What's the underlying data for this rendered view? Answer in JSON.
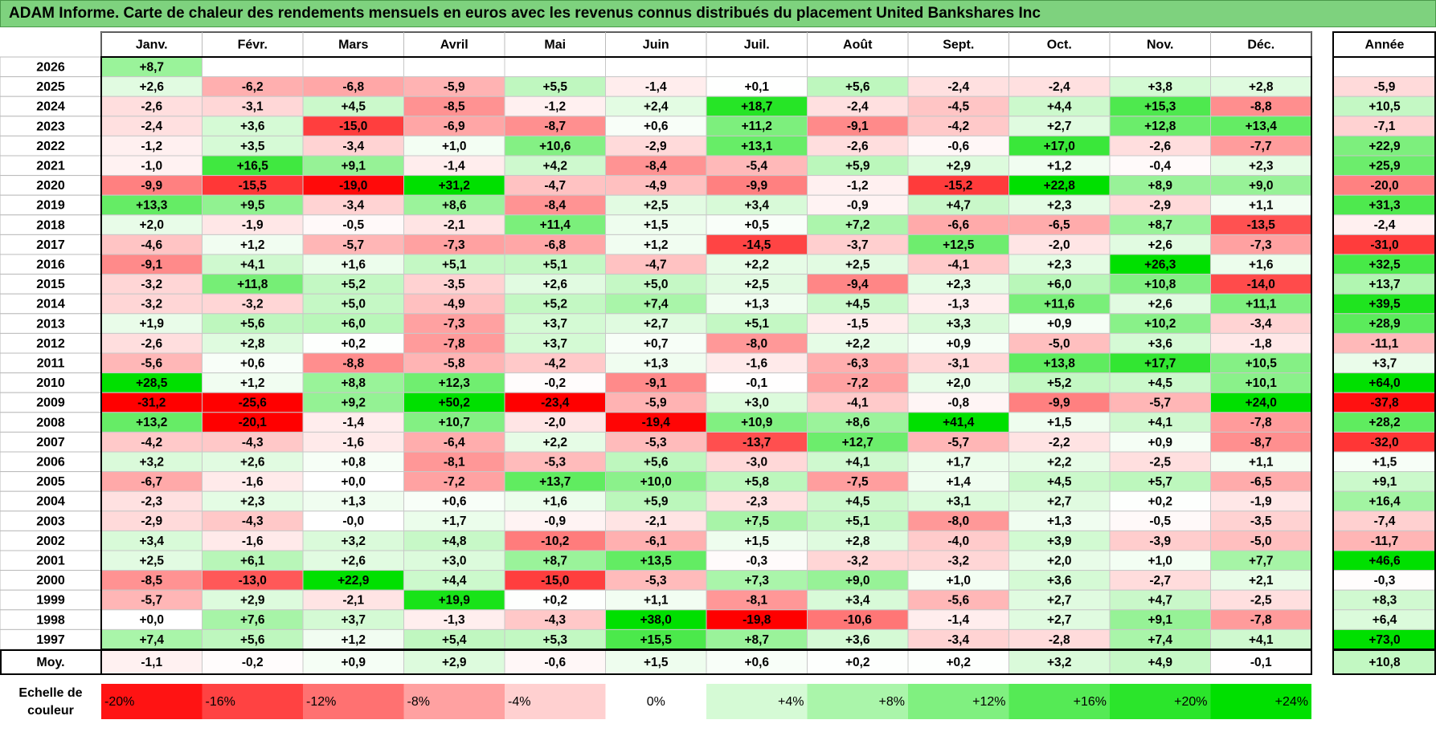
{
  "title": "ADAM Informe. Carte de chaleur des rendements mensuels en euros avec les revenus connus distribués du placement United Bankshares Inc",
  "colors": {
    "neg_max": "#ff0000",
    "pos_max": "#00e000",
    "neutral": "#ffffff",
    "title_bg": "#7ed27e"
  },
  "chart_data": {
    "type": "heatmap",
    "title": "ADAM Informe. Carte de chaleur des rendements mensuels en euros avec les revenus connus distribués du placement United Bankshares Inc",
    "columns": [
      "Janv.",
      "Févr.",
      "Mars",
      "Avril",
      "Mai",
      "Juin",
      "Juil.",
      "Août",
      "Sept.",
      "Oct.",
      "Nov.",
      "Déc."
    ],
    "year_header": "Année",
    "rows": [
      {
        "year": "2026",
        "values": [
          "+8,7",
          null,
          null,
          null,
          null,
          null,
          null,
          null,
          null,
          null,
          null,
          null
        ],
        "annual": null
      },
      {
        "year": "2025",
        "values": [
          "+2,6",
          "-6,2",
          "-6,8",
          "-5,9",
          "+5,5",
          "-1,4",
          "+0,1",
          "+5,6",
          "-2,4",
          "-2,4",
          "+3,8",
          "+2,8"
        ],
        "annual": "-5,9"
      },
      {
        "year": "2024",
        "values": [
          "-2,6",
          "-3,1",
          "+4,5",
          "-8,5",
          "-1,2",
          "+2,4",
          "+18,7",
          "-2,4",
          "-4,5",
          "+4,4",
          "+15,3",
          "-8,8"
        ],
        "annual": "+10,5"
      },
      {
        "year": "2023",
        "values": [
          "-2,4",
          "+3,6",
          "-15,0",
          "-6,9",
          "-8,7",
          "+0,6",
          "+11,2",
          "-9,1",
          "-4,2",
          "+2,7",
          "+12,8",
          "+13,4"
        ],
        "annual": "-7,1"
      },
      {
        "year": "2022",
        "values": [
          "-1,2",
          "+3,5",
          "-3,4",
          "+1,0",
          "+10,6",
          "-2,9",
          "+13,1",
          "-2,6",
          "-0,6",
          "+17,0",
          "-2,6",
          "-7,7"
        ],
        "annual": "+22,9"
      },
      {
        "year": "2021",
        "values": [
          "-1,0",
          "+16,5",
          "+9,1",
          "-1,4",
          "+4,2",
          "-8,4",
          "-5,4",
          "+5,9",
          "+2,9",
          "+1,2",
          "-0,4",
          "+2,3"
        ],
        "annual": "+25,9"
      },
      {
        "year": "2020",
        "values": [
          "-9,9",
          "-15,5",
          "-19,0",
          "+31,2",
          "-4,7",
          "-4,9",
          "-9,9",
          "-1,2",
          "-15,2",
          "+22,8",
          "+8,9",
          "+9,0"
        ],
        "annual": "-20,0"
      },
      {
        "year": "2019",
        "values": [
          "+13,3",
          "+9,5",
          "-3,4",
          "+8,6",
          "-8,4",
          "+2,5",
          "+3,4",
          "-0,9",
          "+4,7",
          "+2,3",
          "-2,9",
          "+1,1"
        ],
        "annual": "+31,3"
      },
      {
        "year": "2018",
        "values": [
          "+2,0",
          "-1,9",
          "-0,5",
          "-2,1",
          "+11,4",
          "+1,5",
          "+0,5",
          "+7,2",
          "-6,6",
          "-6,5",
          "+8,7",
          "-13,5"
        ],
        "annual": "-2,4"
      },
      {
        "year": "2017",
        "values": [
          "-4,6",
          "+1,2",
          "-5,7",
          "-7,3",
          "-6,8",
          "+1,2",
          "-14,5",
          "-3,7",
          "+12,5",
          "-2,0",
          "+2,6",
          "-7,3"
        ],
        "annual": "-31,0"
      },
      {
        "year": "2016",
        "values": [
          "-9,1",
          "+4,1",
          "+1,6",
          "+5,1",
          "+5,1",
          "-4,7",
          "+2,2",
          "+2,5",
          "-4,1",
          "+2,3",
          "+26,3",
          "+1,6"
        ],
        "annual": "+32,5"
      },
      {
        "year": "2015",
        "values": [
          "-3,2",
          "+11,8",
          "+5,2",
          "-3,5",
          "+2,6",
          "+5,0",
          "+2,5",
          "-9,4",
          "+2,3",
          "+6,0",
          "+10,8",
          "-14,0"
        ],
        "annual": "+13,7"
      },
      {
        "year": "2014",
        "values": [
          "-3,2",
          "-3,2",
          "+5,0",
          "-4,9",
          "+5,2",
          "+7,4",
          "+1,3",
          "+4,5",
          "-1,3",
          "+11,6",
          "+2,6",
          "+11,1"
        ],
        "annual": "+39,5"
      },
      {
        "year": "2013",
        "values": [
          "+1,9",
          "+5,6",
          "+6,0",
          "-7,3",
          "+3,7",
          "+2,7",
          "+5,1",
          "-1,5",
          "+3,3",
          "+0,9",
          "+10,2",
          "-3,4"
        ],
        "annual": "+28,9"
      },
      {
        "year": "2012",
        "values": [
          "-2,6",
          "+2,8",
          "+0,2",
          "-7,8",
          "+3,7",
          "+0,7",
          "-8,0",
          "+2,2",
          "+0,9",
          "-5,0",
          "+3,6",
          "-1,8"
        ],
        "annual": "-11,1"
      },
      {
        "year": "2011",
        "values": [
          "-5,6",
          "+0,6",
          "-8,8",
          "-5,8",
          "-4,2",
          "+1,3",
          "-1,6",
          "-6,3",
          "-3,1",
          "+13,8",
          "+17,7",
          "+10,5"
        ],
        "annual": "+3,7"
      },
      {
        "year": "2010",
        "values": [
          "+28,5",
          "+1,2",
          "+8,8",
          "+12,3",
          "-0,2",
          "-9,1",
          "-0,1",
          "-7,2",
          "+2,0",
          "+5,2",
          "+4,5",
          "+10,1"
        ],
        "annual": "+64,0"
      },
      {
        "year": "2009",
        "values": [
          "-31,2",
          "-25,6",
          "+9,2",
          "+50,2",
          "-23,4",
          "-5,9",
          "+3,0",
          "-4,1",
          "-0,8",
          "-9,9",
          "-5,7",
          "+24,0"
        ],
        "annual": "-37,8"
      },
      {
        "year": "2008",
        "values": [
          "+13,2",
          "-20,1",
          "-1,4",
          "+10,7",
          "-2,0",
          "-19,4",
          "+10,9",
          "+8,6",
          "+41,4",
          "+1,5",
          "+4,1",
          "-7,8"
        ],
        "annual": "+28,2"
      },
      {
        "year": "2007",
        "values": [
          "-4,2",
          "-4,3",
          "-1,6",
          "-6,4",
          "+2,2",
          "-5,3",
          "-13,7",
          "+12,7",
          "-5,7",
          "-2,2",
          "+0,9",
          "-8,7"
        ],
        "annual": "-32,0"
      },
      {
        "year": "2006",
        "values": [
          "+3,2",
          "+2,6",
          "+0,8",
          "-8,1",
          "-5,3",
          "+5,6",
          "-3,0",
          "+4,1",
          "+1,7",
          "+2,2",
          "-2,5",
          "+1,1"
        ],
        "annual": "+1,5"
      },
      {
        "year": "2005",
        "values": [
          "-6,7",
          "-1,6",
          "+0,0",
          "-7,2",
          "+13,7",
          "+10,0",
          "+5,8",
          "-7,5",
          "+1,4",
          "+4,5",
          "+5,7",
          "-6,5"
        ],
        "annual": "+9,1"
      },
      {
        "year": "2004",
        "values": [
          "-2,3",
          "+2,3",
          "+1,3",
          "+0,6",
          "+1,6",
          "+5,9",
          "-2,3",
          "+4,5",
          "+3,1",
          "+2,7",
          "+0,2",
          "-1,9"
        ],
        "annual": "+16,4"
      },
      {
        "year": "2003",
        "values": [
          "-2,9",
          "-4,3",
          "-0,0",
          "+1,7",
          "-0,9",
          "-2,1",
          "+7,5",
          "+5,1",
          "-8,0",
          "+1,3",
          "-0,5",
          "-3,5"
        ],
        "annual": "-7,4"
      },
      {
        "year": "2002",
        "values": [
          "+3,4",
          "-1,6",
          "+3,2",
          "+4,8",
          "-10,2",
          "-6,1",
          "+1,5",
          "+2,8",
          "-4,0",
          "+3,9",
          "-3,9",
          "-5,0"
        ],
        "annual": "-11,7"
      },
      {
        "year": "2001",
        "values": [
          "+2,5",
          "+6,1",
          "+2,6",
          "+3,0",
          "+8,7",
          "+13,5",
          "-0,3",
          "-3,2",
          "-3,2",
          "+2,0",
          "+1,0",
          "+7,7"
        ],
        "annual": "+46,6"
      },
      {
        "year": "2000",
        "values": [
          "-8,5",
          "-13,0",
          "+22,9",
          "+4,4",
          "-15,0",
          "-5,3",
          "+7,3",
          "+9,0",
          "+1,0",
          "+3,6",
          "-2,7",
          "+2,1"
        ],
        "annual": "-0,3"
      },
      {
        "year": "1999",
        "values": [
          "-5,7",
          "+2,9",
          "-2,1",
          "+19,9",
          "+0,2",
          "+1,1",
          "-8,1",
          "+3,4",
          "-5,6",
          "+2,7",
          "+4,7",
          "-2,5"
        ],
        "annual": "+8,3"
      },
      {
        "year": "1998",
        "values": [
          "+0,0",
          "+7,6",
          "+3,7",
          "-1,3",
          "-4,3",
          "+38,0",
          "-19,8",
          "-10,6",
          "-1,4",
          "+2,7",
          "+9,1",
          "-7,8"
        ],
        "annual": "+6,4"
      },
      {
        "year": "1997",
        "values": [
          "+7,4",
          "+5,6",
          "+1,2",
          "+5,4",
          "+5,3",
          "+15,5",
          "+8,7",
          "+3,6",
          "-3,4",
          "-2,8",
          "+7,4",
          "+4,1"
        ],
        "annual": "+73,0"
      }
    ],
    "average": {
      "label": "Moy.",
      "values": [
        "-1,1",
        "-0,2",
        "+0,9",
        "+2,9",
        "-0,6",
        "+1,5",
        "+0,6",
        "+0,2",
        "+0,2",
        "+3,2",
        "+4,9",
        "-0,1"
      ],
      "annual": "+10,8"
    },
    "scale": {
      "label_line1": "Echelle de",
      "label_line2": "couleur",
      "steps": [
        {
          "label": "-20%",
          "value": -20
        },
        {
          "label": "-16%",
          "value": -16
        },
        {
          "label": "-12%",
          "value": -12
        },
        {
          "label": "-8%",
          "value": -8
        },
        {
          "label": "-4%",
          "value": -4
        },
        {
          "label": "0%",
          "value": 0
        },
        {
          "label": "+4%",
          "value": 4
        },
        {
          "label": "+8%",
          "value": 8
        },
        {
          "label": "+12%",
          "value": 12
        },
        {
          "label": "+16%",
          "value": 16
        },
        {
          "label": "+20%",
          "value": 20
        },
        {
          "label": "+24%",
          "value": 24
        }
      ]
    }
  }
}
